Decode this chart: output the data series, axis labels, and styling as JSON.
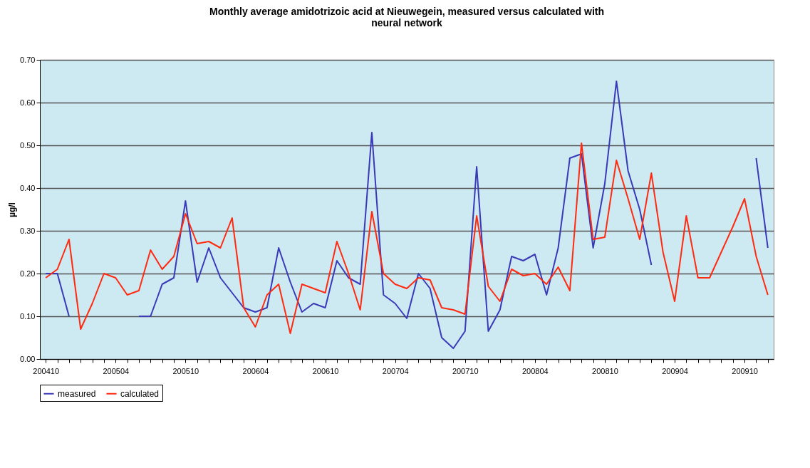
{
  "chart_data": {
    "type": "line",
    "title": "Monthly average amidotrizoic acid at Nieuwegein, measured versus calculated with neural  network",
    "ylabel": "µg/l",
    "categories": [
      "200410",
      null,
      null,
      null,
      null,
      null,
      "200504",
      null,
      null,
      null,
      null,
      null,
      "200510",
      null,
      null,
      null,
      null,
      null,
      "200604",
      null,
      null,
      null,
      null,
      null,
      "200610",
      null,
      null,
      null,
      null,
      null,
      "200704",
      null,
      null,
      null,
      null,
      null,
      "200710",
      null,
      null,
      null,
      null,
      null,
      "200804",
      null,
      null,
      null,
      null,
      null,
      "200810",
      null,
      null,
      null,
      null,
      null,
      "200904",
      null,
      null,
      null,
      null,
      null,
      "200910",
      null,
      null
    ],
    "series": [
      {
        "name": "measured",
        "color": "#3a3ab8",
        "values": [
          0.2,
          0.2,
          0.1,
          null,
          null,
          null,
          null,
          null,
          0.1,
          0.1,
          0.175,
          0.19,
          0.37,
          0.18,
          0.26,
          0.19,
          0.155,
          0.12,
          0.11,
          0.12,
          0.26,
          0.18,
          0.11,
          0.13,
          0.12,
          0.23,
          0.19,
          0.175,
          0.53,
          0.15,
          0.13,
          0.095,
          0.2,
          0.165,
          0.05,
          0.025,
          0.065,
          0.45,
          0.065,
          0.115,
          0.24,
          0.23,
          0.245,
          0.15,
          0.26,
          0.47,
          0.48,
          0.26,
          0.41,
          0.65,
          0.44,
          0.35,
          0.22,
          null,
          null,
          null,
          null,
          null,
          null,
          null,
          null,
          0.47,
          0.26
        ]
      },
      {
        "name": "calculated",
        "color": "#ff2a10",
        "values": [
          0.19,
          0.21,
          0.28,
          0.07,
          0.13,
          0.2,
          0.19,
          0.15,
          0.16,
          0.255,
          0.21,
          0.24,
          0.34,
          0.27,
          0.275,
          0.26,
          0.33,
          0.12,
          0.075,
          0.15,
          0.175,
          0.06,
          0.175,
          0.165,
          0.155,
          0.275,
          0.2,
          0.115,
          0.345,
          0.2,
          0.175,
          0.165,
          0.19,
          0.185,
          0.12,
          0.115,
          0.105,
          0.335,
          0.17,
          0.135,
          0.21,
          0.195,
          0.2,
          0.175,
          0.215,
          0.16,
          0.505,
          0.28,
          0.285,
          0.465,
          0.375,
          0.28,
          0.435,
          0.25,
          0.135,
          0.335,
          0.19,
          0.19,
          0.25,
          0.31,
          0.375,
          0.24,
          0.15
        ]
      }
    ],
    "ylim": [
      0,
      0.7
    ],
    "yticks": [
      {
        "value": 0,
        "label": "0.00"
      },
      {
        "value": 0.1,
        "label": "0.10"
      },
      {
        "value": 0.2,
        "label": "0.20"
      },
      {
        "value": 0.3,
        "label": "0.30"
      },
      {
        "value": 0.4,
        "label": "0.40"
      },
      {
        "value": 0.5,
        "label": "0.50"
      },
      {
        "value": 0.6,
        "label": "0.60"
      },
      {
        "value": 0.7,
        "label": "0.70"
      }
    ],
    "grid": "y",
    "legend": "bottom",
    "marker": "none",
    "line_style": "solid"
  }
}
